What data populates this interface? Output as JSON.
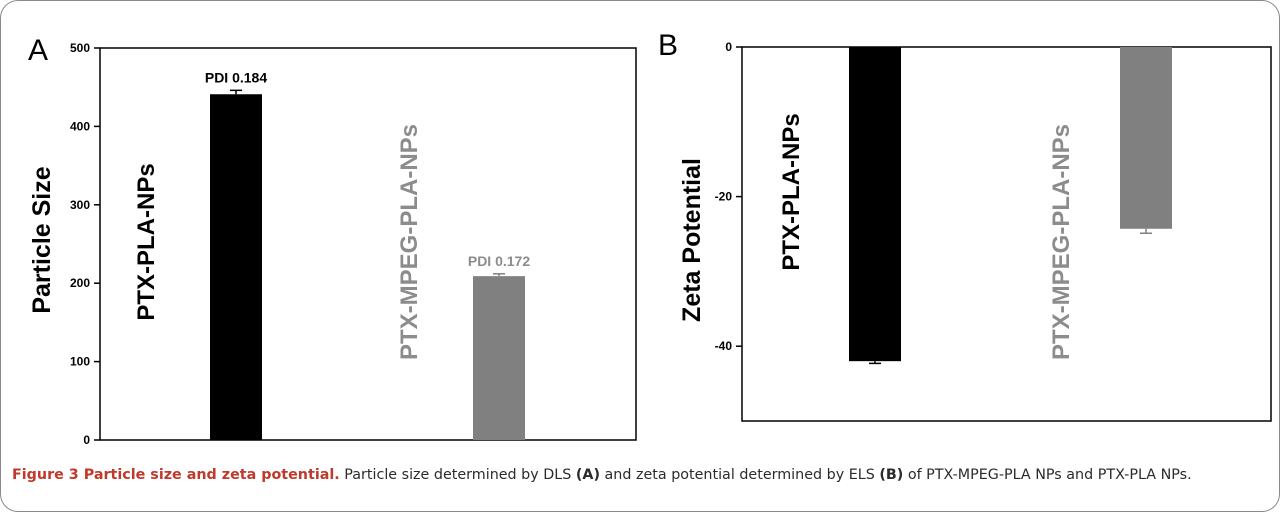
{
  "colors": {
    "dark_bar": "#000000",
    "grey_bar": "#808080",
    "grey_text": "#8c8c8c"
  },
  "chart_data": [
    {
      "type": "bar",
      "panel_label": "A",
      "ylabel": "Particle Size",
      "ylim": [
        0,
        500
      ],
      "yticks": [
        0,
        100,
        200,
        300,
        400,
        500
      ],
      "categories": [
        "PTX-PLA-NPs",
        "PTX-MPEG-PLA-NPs"
      ],
      "values": [
        441,
        209
      ],
      "errors": [
        5,
        3
      ],
      "bar_colors": [
        "#000000",
        "#808080"
      ],
      "annotations": [
        "PDI 0.184",
        "PDI 0.172"
      ],
      "annotation_colors": [
        "#000000",
        "#8c8c8c"
      ]
    },
    {
      "type": "bar",
      "panel_label": "B",
      "ylabel": "Zeta Potential",
      "ylim": [
        -50,
        0
      ],
      "yticks": [
        -40,
        -20,
        0
      ],
      "categories": [
        "PTX-PLA-NPs",
        "PTX-MPEG-PLA-NPs"
      ],
      "values": [
        -42,
        -24.3
      ],
      "errors": [
        0.3,
        0.6
      ],
      "bar_colors": [
        "#000000",
        "#808080"
      ],
      "annotations": [
        "",
        ""
      ]
    }
  ],
  "caption": {
    "title": "Figure 3 Particle size and zeta potential.",
    "text1": " Particle size determined by DLS ",
    "ref_a": "(A)",
    "text2": " and zeta potential determined by ELS ",
    "ref_b": "(B)",
    "text3": " of PTX-MPEG-PLA NPs and PTX-PLA NPs."
  }
}
